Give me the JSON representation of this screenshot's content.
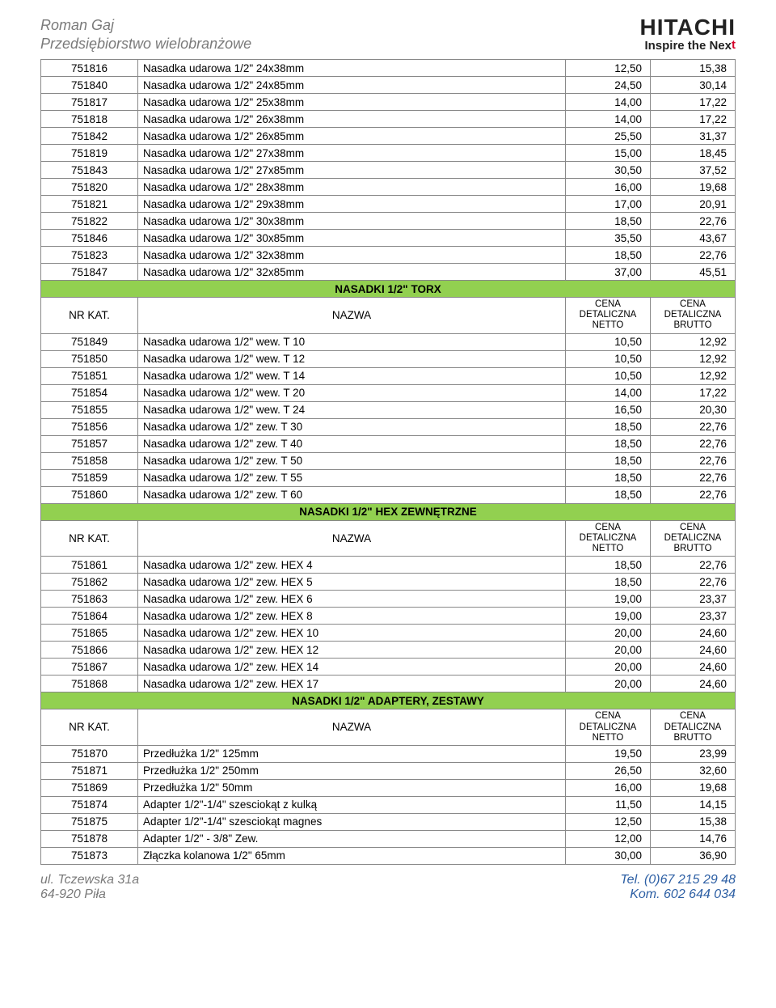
{
  "company": {
    "name_line1": "Roman Gaj",
    "name_line2": "Przedsiębiorstwo wielobranżowe"
  },
  "brand": {
    "word": "HITACHI",
    "tagline_pre": "Inspire the Nex",
    "tagline_accent": "t"
  },
  "col_headers": {
    "kat": "NR KAT.",
    "nazwa": "NAZWA",
    "netto_l1": "CENA",
    "netto_l2": "DETALICZNA",
    "netto_l3": "NETTO",
    "brutto_l1": "CENA",
    "brutto_l2": "DETALICZNA",
    "brutto_l3": "BRUTTO"
  },
  "table_style": {
    "band_bg": "#92d050",
    "border": "#888888",
    "font_size_row": 13.5,
    "font_size_band": 16,
    "col_widths": {
      "code": 120,
      "num": 105
    }
  },
  "sections": [
    {
      "rows": [
        {
          "code": "751816",
          "desc": "Nasadka udarowa 1/2\" 24x38mm",
          "net": "12,50",
          "gross": "15,38"
        },
        {
          "code": "751840",
          "desc": "Nasadka udarowa 1/2\" 24x85mm",
          "net": "24,50",
          "gross": "30,14"
        },
        {
          "code": "751817",
          "desc": "Nasadka udarowa 1/2\" 25x38mm",
          "net": "14,00",
          "gross": "17,22"
        },
        {
          "code": "751818",
          "desc": "Nasadka udarowa 1/2\" 26x38mm",
          "net": "14,00",
          "gross": "17,22"
        },
        {
          "code": "751842",
          "desc": "Nasadka udarowa 1/2\" 26x85mm",
          "net": "25,50",
          "gross": "31,37"
        },
        {
          "code": "751819",
          "desc": "Nasadka udarowa 1/2\" 27x38mm",
          "net": "15,00",
          "gross": "18,45"
        },
        {
          "code": "751843",
          "desc": "Nasadka udarowa 1/2\" 27x85mm",
          "net": "30,50",
          "gross": "37,52"
        },
        {
          "code": "751820",
          "desc": "Nasadka udarowa 1/2\" 28x38mm",
          "net": "16,00",
          "gross": "19,68"
        },
        {
          "code": "751821",
          "desc": "Nasadka udarowa 1/2\" 29x38mm",
          "net": "17,00",
          "gross": "20,91"
        },
        {
          "code": "751822",
          "desc": "Nasadka udarowa 1/2\" 30x38mm",
          "net": "18,50",
          "gross": "22,76"
        },
        {
          "code": "751846",
          "desc": "Nasadka udarowa 1/2\" 30x85mm",
          "net": "35,50",
          "gross": "43,67"
        },
        {
          "code": "751823",
          "desc": "Nasadka udarowa 1/2\" 32x38mm",
          "net": "18,50",
          "gross": "22,76"
        },
        {
          "code": "751847",
          "desc": "Nasadka udarowa 1/2\" 32x85mm",
          "net": "37,00",
          "gross": "45,51"
        }
      ]
    },
    {
      "title": "NASADKI 1/2\" TORX",
      "rows": [
        {
          "code": "751849",
          "desc": "Nasadka udarowa 1/2\" wew. T 10",
          "net": "10,50",
          "gross": "12,92"
        },
        {
          "code": "751850",
          "desc": "Nasadka udarowa 1/2\" wew. T 12",
          "net": "10,50",
          "gross": "12,92"
        },
        {
          "code": "751851",
          "desc": "Nasadka udarowa 1/2\" wew. T 14",
          "net": "10,50",
          "gross": "12,92"
        },
        {
          "code": "751854",
          "desc": "Nasadka udarowa 1/2\" wew. T 20",
          "net": "14,00",
          "gross": "17,22"
        },
        {
          "code": "751855",
          "desc": "Nasadka udarowa 1/2\" wew. T 24",
          "net": "16,50",
          "gross": "20,30"
        },
        {
          "code": "751856",
          "desc": "Nasadka udarowa 1/2\" zew. T 30",
          "net": "18,50",
          "gross": "22,76"
        },
        {
          "code": "751857",
          "desc": "Nasadka udarowa 1/2\" zew. T 40",
          "net": "18,50",
          "gross": "22,76"
        },
        {
          "code": "751858",
          "desc": "Nasadka udarowa 1/2\" zew. T 50",
          "net": "18,50",
          "gross": "22,76"
        },
        {
          "code": "751859",
          "desc": "Nasadka udarowa 1/2\" zew. T 55",
          "net": "18,50",
          "gross": "22,76"
        },
        {
          "code": "751860",
          "desc": "Nasadka udarowa 1/2\" zew. T 60",
          "net": "18,50",
          "gross": "22,76"
        }
      ]
    },
    {
      "title": "NASADKI 1/2\" HEX ZEWNĘTRZNE",
      "rows": [
        {
          "code": "751861",
          "desc": "Nasadka udarowa 1/2\" zew. HEX 4",
          "net": "18,50",
          "gross": "22,76"
        },
        {
          "code": "751862",
          "desc": "Nasadka udarowa 1/2\" zew. HEX 5",
          "net": "18,50",
          "gross": "22,76"
        },
        {
          "code": "751863",
          "desc": "Nasadka udarowa 1/2\" zew. HEX 6",
          "net": "19,00",
          "gross": "23,37"
        },
        {
          "code": "751864",
          "desc": "Nasadka udarowa 1/2\" zew. HEX 8",
          "net": "19,00",
          "gross": "23,37"
        },
        {
          "code": "751865",
          "desc": "Nasadka udarowa 1/2\" zew. HEX 10",
          "net": "20,00",
          "gross": "24,60"
        },
        {
          "code": "751866",
          "desc": "Nasadka udarowa 1/2\" zew. HEX 12",
          "net": "20,00",
          "gross": "24,60"
        },
        {
          "code": "751867",
          "desc": "Nasadka udarowa 1/2\" zew. HEX 14",
          "net": "20,00",
          "gross": "24,60"
        },
        {
          "code": "751868",
          "desc": "Nasadka udarowa 1/2\" zew. HEX 17",
          "net": "20,00",
          "gross": "24,60"
        }
      ]
    },
    {
      "title": "NASADKI 1/2\" ADAPTERY, ZESTAWY",
      "rows": [
        {
          "code": "751870",
          "desc": "Przedłużka 1/2\" 125mm",
          "net": "19,50",
          "gross": "23,99"
        },
        {
          "code": "751871",
          "desc": "Przedłużka 1/2\" 250mm",
          "net": "26,50",
          "gross": "32,60"
        },
        {
          "code": "751869",
          "desc": "Przedłużka 1/2\" 50mm",
          "net": "16,00",
          "gross": "19,68"
        },
        {
          "code": "751874",
          "desc": "Adapter 1/2\"-1/4\" szesciokąt z kulką",
          "net": "11,50",
          "gross": "14,15"
        },
        {
          "code": "751875",
          "desc": "Adapter 1/2\"-1/4\" szesciokąt magnes",
          "net": "12,50",
          "gross": "15,38"
        },
        {
          "code": "751878",
          "desc": "Adapter 1/2\" - 3/8\" Zew.",
          "net": "12,00",
          "gross": "14,76"
        },
        {
          "code": "751873",
          "desc": "Złączka kolanowa 1/2\" 65mm",
          "net": "30,00",
          "gross": "36,90"
        }
      ]
    }
  ],
  "footer": {
    "left_l1": "ul. Tczewska 31a",
    "left_l2": "64-920 Piła",
    "right_l1": "Tel. (0)67 215 29 48",
    "right_l2": "Kom. 602 644 034"
  }
}
